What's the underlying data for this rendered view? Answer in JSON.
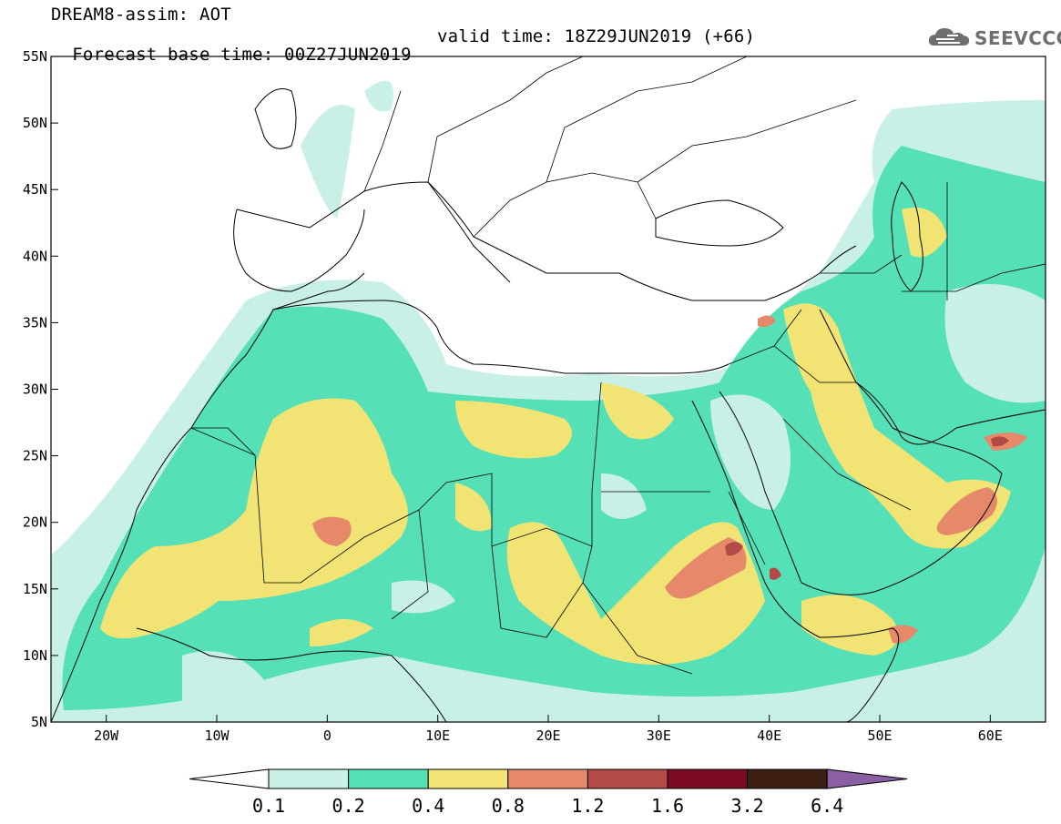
{
  "header": {
    "title": "DREAM8-assim: AOT",
    "base_time": "Forecast base time: 00Z27JUN2019",
    "valid_time": "valid time: 18Z29JUN2019 (+66)"
  },
  "logo": {
    "text": "SEEVCCC",
    "icon": "cloud-icon"
  },
  "axes": {
    "lon_labels": [
      "20W",
      "10W",
      "0",
      "10E",
      "20E",
      "30E",
      "40E",
      "50E",
      "60E"
    ],
    "lat_labels": [
      "55N",
      "50N",
      "45N",
      "40N",
      "35N",
      "30N",
      "25N",
      "20N",
      "15N",
      "10N",
      "5N"
    ],
    "lon_range": [
      -25,
      65
    ],
    "lat_range": [
      5,
      55
    ]
  },
  "colorbar": {
    "labels": [
      "0.1",
      "0.2",
      "0.4",
      "0.8",
      "1.2",
      "1.6",
      "3.2",
      "6.4"
    ],
    "colors": [
      "#ffffff",
      "#c9f0e6",
      "#55e0b7",
      "#f2e474",
      "#e5896a",
      "#b24b45",
      "#7a0b23",
      "#3d1f14",
      "#8a5fa3"
    ]
  }
}
